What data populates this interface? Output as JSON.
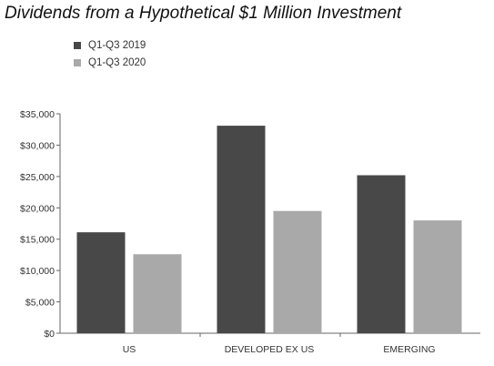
{
  "chart_data": {
    "type": "bar",
    "title": "Dividends from a Hypothetical $1 Million Investment",
    "xlabel": "",
    "ylabel": "",
    "categories": [
      "US",
      "DEVELOPED EX US",
      "EMERGING"
    ],
    "series": [
      {
        "name": "Q1-Q3 2019",
        "color": "#484848",
        "values": [
          16100,
          33100,
          25200
        ]
      },
      {
        "name": "Q1-Q3 2020",
        "color": "#a9a9a9",
        "values": [
          12600,
          19500,
          18000
        ]
      }
    ],
    "ylim": [
      0,
      35000
    ],
    "yticks": [
      0,
      5000,
      10000,
      15000,
      20000,
      25000,
      30000,
      35000
    ],
    "ytick_labels": [
      "$0",
      "$5,000",
      "$10,000",
      "$15,000",
      "$20,000",
      "$25,000",
      "$30,000",
      "$35,000"
    ],
    "grid": false,
    "legend": "top-left"
  }
}
